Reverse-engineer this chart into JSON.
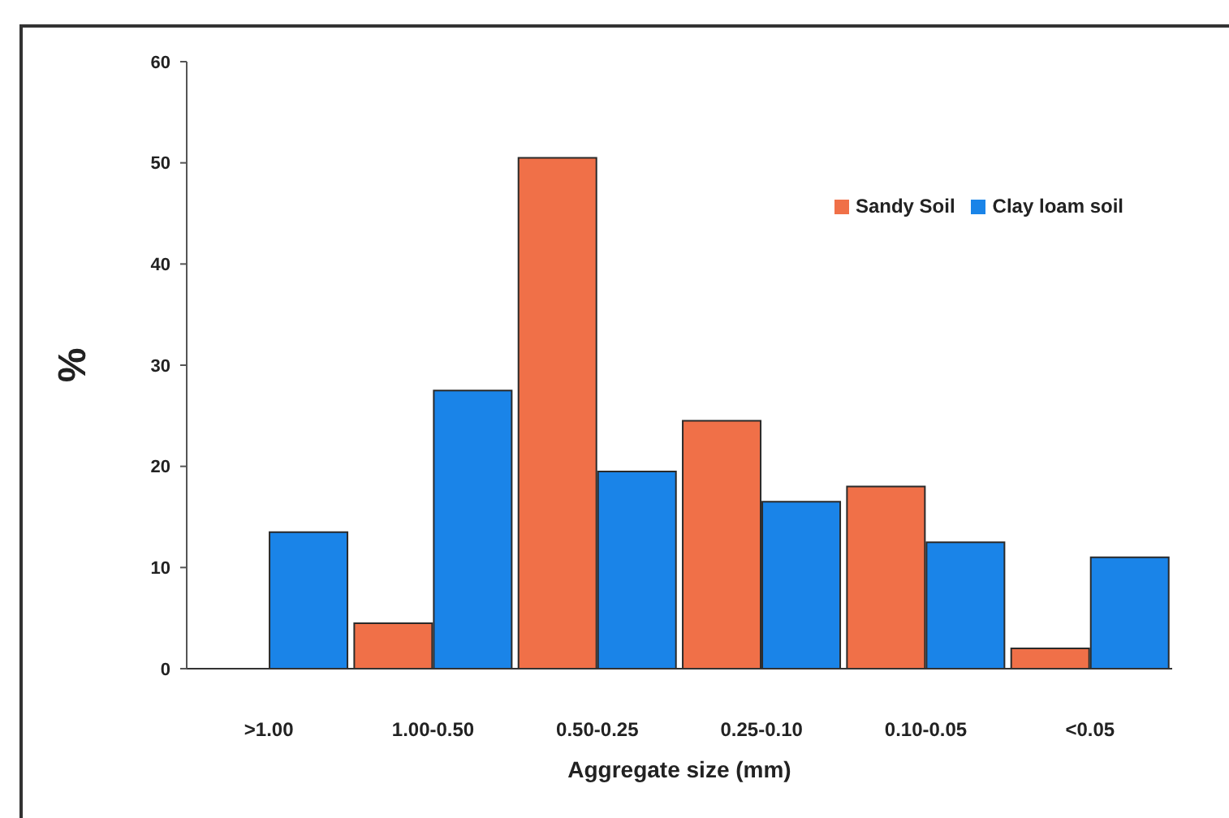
{
  "chart_data": {
    "type": "bar",
    "xlabel": "Aggregate size (mm)",
    "ylabel": "%",
    "categories": [
      ">1.00",
      "1.00-0.50",
      "0.50-0.25",
      "0.25-0.10",
      "0.10-0.05",
      "<0.05"
    ],
    "series": [
      {
        "name": "Sandy Soil",
        "color": "#f07048",
        "values": [
          0,
          4.5,
          50.5,
          24.5,
          18,
          2
        ]
      },
      {
        "name": "Clay loam soil",
        "color": "#1a84e8",
        "values": [
          13.5,
          27.5,
          19.5,
          16.5,
          12.5,
          11
        ]
      }
    ],
    "ylim": [
      0,
      60
    ],
    "yticks": [
      0,
      10,
      20,
      30,
      40,
      50,
      60
    ],
    "legend": "top right",
    "grid": false
  }
}
